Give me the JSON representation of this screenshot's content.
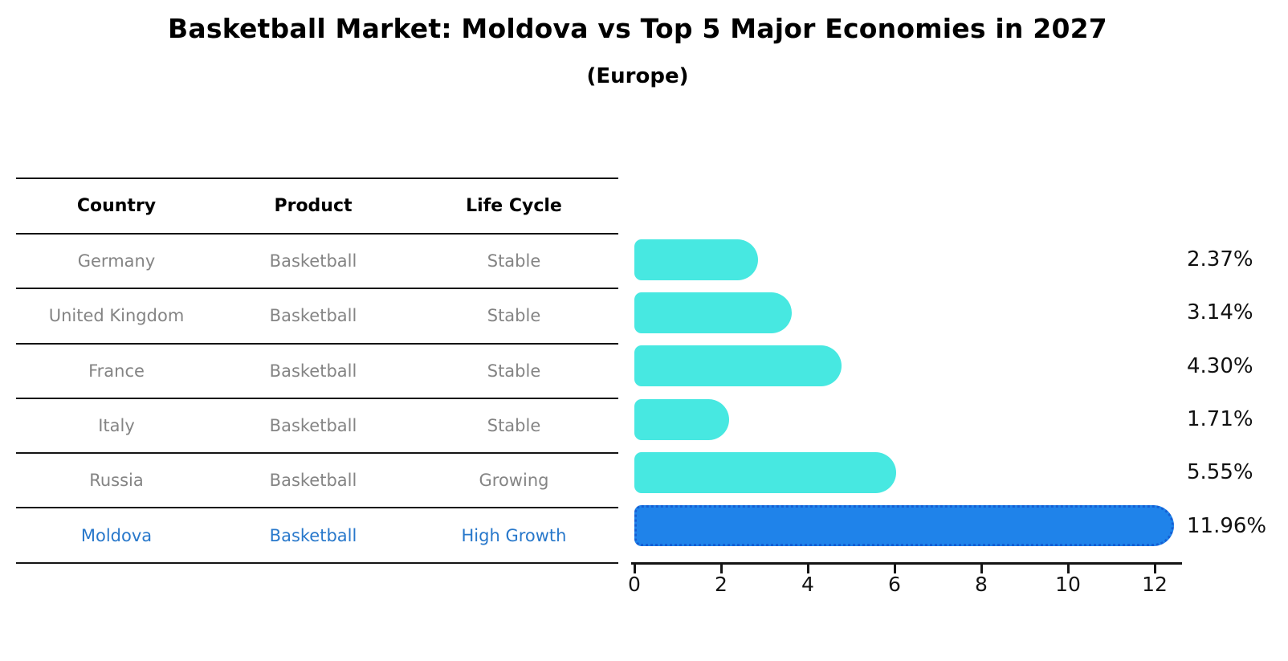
{
  "header": {
    "title": "Basketball Market: Moldova vs Top 5 Major Economies in 2027",
    "subtitle": "(Europe)"
  },
  "table": {
    "columns": [
      "Country",
      "Product",
      "Life Cycle"
    ],
    "rows": [
      {
        "country": "Germany",
        "product": "Basketball",
        "life_cycle": "Stable"
      },
      {
        "country": "United Kingdom",
        "product": "Basketball",
        "life_cycle": "Stable"
      },
      {
        "country": "France",
        "product": "Basketball",
        "life_cycle": "Stable"
      },
      {
        "country": "Italy",
        "product": "Basketball",
        "life_cycle": "Stable"
      },
      {
        "country": "Russia",
        "product": "Basketball",
        "life_cycle": "Growing"
      },
      {
        "country": "Moldova",
        "product": "Basketball",
        "life_cycle": "High Growth"
      }
    ]
  },
  "chart_data": {
    "type": "bar",
    "orientation": "horizontal",
    "title": "Basketball Market: Moldova vs Top 5 Major Economies in 2027",
    "subtitle": "(Europe)",
    "categories": [
      "Germany",
      "United Kingdom",
      "France",
      "Italy",
      "Russia",
      "Moldova"
    ],
    "values": [
      2.37,
      3.14,
      4.3,
      1.71,
      5.55,
      11.96
    ],
    "value_labels": [
      "2.37%",
      "3.14%",
      "4.30%",
      "1.71%",
      "5.55%",
      "11.96%"
    ],
    "x_ticks": [
      0,
      2,
      4,
      6,
      8,
      10,
      12
    ],
    "xlim": [
      0,
      12.6
    ],
    "grid": false,
    "legend": false,
    "highlight_index": 5,
    "colors": {
      "bar": "#47e8e1",
      "highlight_bar": "#1f83ea",
      "highlight_border": "#155fd4",
      "highlight_text": "#2878cb",
      "row_text": "#848484",
      "axis": "#141414",
      "value_label_text": "#111111"
    }
  }
}
